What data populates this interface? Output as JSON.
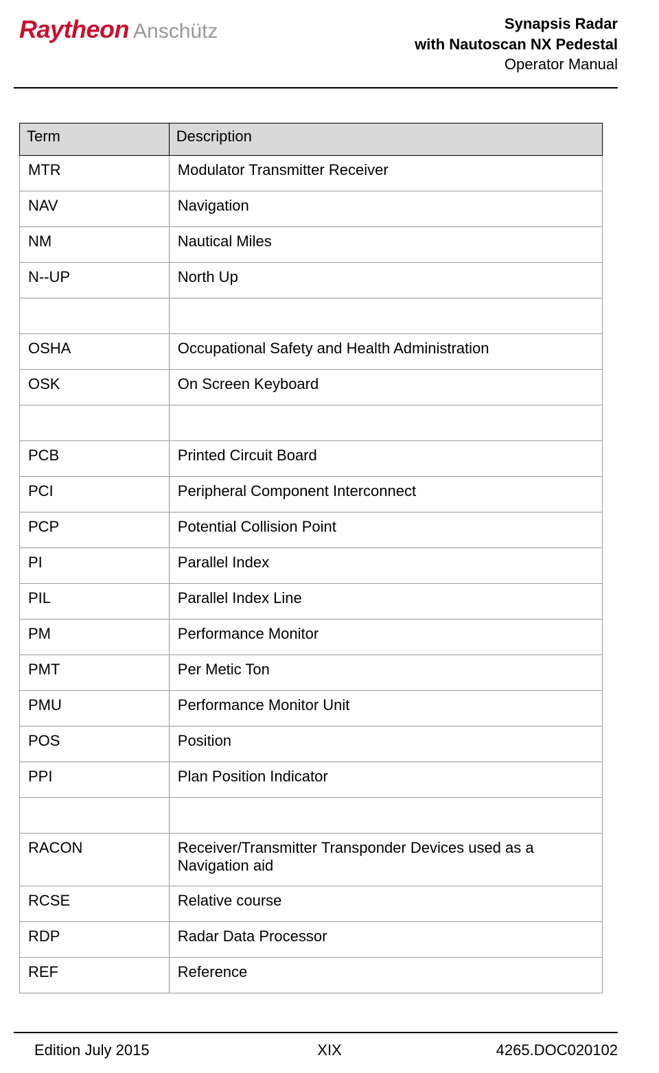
{
  "logo": {
    "brand1": "Raytheon",
    "brand2": "Anschütz"
  },
  "header": {
    "line1": "Synapsis Radar",
    "line2": "with Nautoscan NX Pedestal",
    "line3": "Operator Manual"
  },
  "table": {
    "columns": [
      "Term",
      "Description"
    ],
    "rows": [
      [
        "MTR",
        "Modulator Transmitter Receiver"
      ],
      [
        "NAV",
        "Navigation"
      ],
      [
        "NM",
        "Nautical Miles"
      ],
      [
        "N--UP",
        "North Up"
      ],
      [
        "",
        ""
      ],
      [
        "OSHA",
        "Occupational Safety and Health Administration"
      ],
      [
        "OSK",
        "On Screen Keyboard"
      ],
      [
        "",
        ""
      ],
      [
        "PCB",
        "Printed Circuit Board"
      ],
      [
        "PCI",
        "Peripheral Component Interconnect"
      ],
      [
        "PCP",
        "Potential Collision Point"
      ],
      [
        "PI",
        "Parallel Index"
      ],
      [
        "PIL",
        "Parallel Index Line"
      ],
      [
        "PM",
        "Performance Monitor"
      ],
      [
        "PMT",
        "Per Metic Ton"
      ],
      [
        "PMU",
        "Performance Monitor Unit"
      ],
      [
        "POS",
        "Position"
      ],
      [
        "PPI",
        "Plan Position Indicator"
      ],
      [
        "",
        ""
      ],
      [
        "RACON",
        "Receiver/Transmitter Transponder Devices used as a Navigation aid"
      ],
      [
        "RCSE",
        "Relative course"
      ],
      [
        "RDP",
        "Radar Data Processor"
      ],
      [
        "REF",
        "Reference"
      ]
    ]
  },
  "footer": {
    "left": "Edition July 2015",
    "center": "XIX",
    "right": "4265.DOC020102"
  }
}
